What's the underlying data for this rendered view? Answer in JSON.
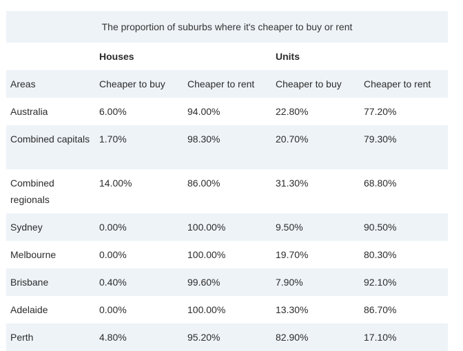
{
  "caption": "The proportion of suburbs where it's cheaper to buy or rent",
  "groups": [
    "",
    "Houses",
    "",
    "Units",
    ""
  ],
  "headers": [
    "Areas",
    "Cheaper to buy",
    "Cheaper to rent",
    "Cheaper to buy",
    "Cheaper to rent"
  ],
  "rows": [
    [
      "Australia",
      "6.00%",
      "94.00%",
      "22.80%",
      "77.20%"
    ],
    [
      "Combined capitals",
      "1.70%",
      "98.30%",
      "20.70%",
      "79.30%"
    ],
    [
      "Combined regionals",
      "14.00%",
      "86.00%",
      "31.30%",
      "68.80%"
    ],
    [
      "Sydney",
      "0.00%",
      "100.00%",
      "9.50%",
      "90.50%"
    ],
    [
      "Melbourne",
      "0.00%",
      "100.00%",
      "19.70%",
      "80.30%"
    ],
    [
      "Brisbane",
      "0.40%",
      "99.60%",
      "7.90%",
      "92.10%"
    ],
    [
      "Adelaide",
      "0.00%",
      "100.00%",
      "13.30%",
      "86.70%"
    ],
    [
      "Perth",
      "4.80%",
      "95.20%",
      "82.90%",
      "17.10%"
    ]
  ]
}
